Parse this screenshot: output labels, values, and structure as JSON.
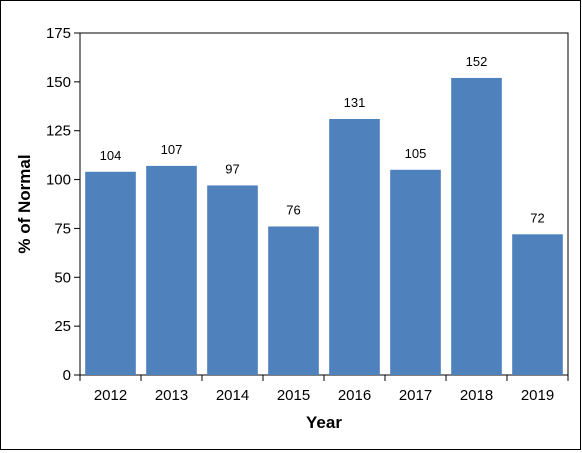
{
  "chart_data": {
    "type": "bar",
    "title": "",
    "xlabel": "Year",
    "ylabel": "% of Normal",
    "categories": [
      "2012",
      "2013",
      "2014",
      "2015",
      "2016",
      "2017",
      "2018",
      "2019"
    ],
    "values": [
      104,
      107,
      97,
      76,
      131,
      105,
      152,
      72
    ],
    "data_labels": [
      "104",
      "107",
      "97",
      "76",
      "131",
      "105",
      "152",
      "72"
    ],
    "ylim": [
      0,
      175
    ],
    "yticks": [
      0,
      25,
      50,
      75,
      100,
      125,
      150,
      175
    ],
    "ytick_labels": [
      "0",
      "25",
      "50",
      "75",
      "100",
      "125",
      "150",
      "175"
    ],
    "grid": false,
    "legend": "none",
    "bar_color": "#4f81bd"
  }
}
